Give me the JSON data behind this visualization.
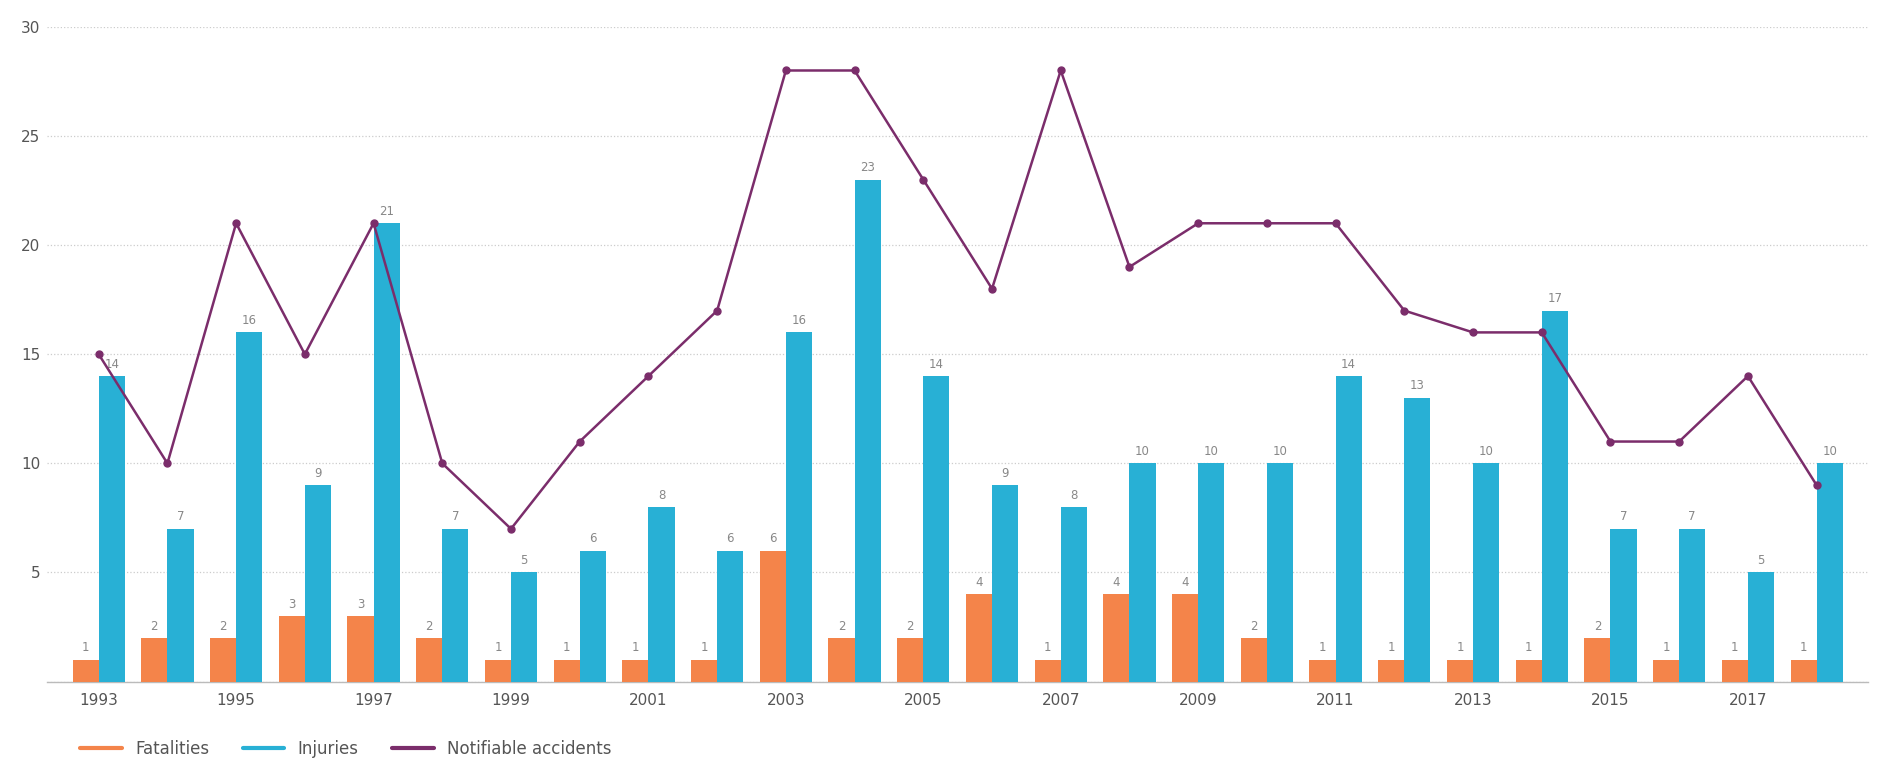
{
  "years": [
    1993,
    1994,
    1995,
    1996,
    1997,
    1998,
    1999,
    2000,
    2001,
    2002,
    2003,
    2004,
    2005,
    2006,
    2007,
    2008,
    2009,
    2010,
    2011,
    2012,
    2013,
    2014,
    2015,
    2016,
    2017,
    2018
  ],
  "fatalities": [
    1,
    2,
    2,
    3,
    3,
    2,
    1,
    1,
    1,
    1,
    6,
    2,
    2,
    4,
    1,
    4,
    4,
    2,
    1,
    1,
    1,
    1,
    2,
    1,
    1,
    1
  ],
  "injuries": [
    14,
    7,
    16,
    9,
    21,
    7,
    5,
    6,
    8,
    6,
    16,
    23,
    14,
    9,
    8,
    10,
    10,
    10,
    14,
    13,
    10,
    17,
    7,
    7,
    5,
    10
  ],
  "notifiable": [
    15,
    10,
    21,
    15,
    21,
    10,
    7,
    11,
    14,
    17,
    28,
    28,
    23,
    18,
    28,
    19,
    21,
    21,
    21,
    17,
    16,
    16,
    11,
    11,
    14,
    9
  ],
  "bar_width": 0.38,
  "fatalities_color": "#F4844A",
  "injuries_color": "#28B0D5",
  "notifiable_color": "#7B2D6B",
  "background_color": "#ffffff",
  "ylim": [
    0,
    30
  ],
  "yticks": [
    0,
    5,
    10,
    15,
    20,
    25,
    30
  ],
  "tick_years": [
    1993,
    1995,
    1997,
    1999,
    2001,
    2003,
    2005,
    2007,
    2009,
    2011,
    2013,
    2015,
    2017
  ],
  "legend_labels": [
    "Fatalities",
    "Injuries",
    "Notifiable accidents"
  ],
  "axis_label_color": "#555555",
  "bar_label_color": "#888888",
  "grid_color": "#cccccc",
  "grid_style": "dotted"
}
